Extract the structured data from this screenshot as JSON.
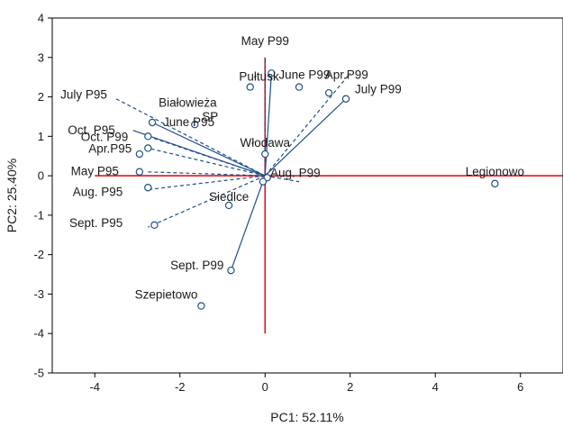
{
  "chart_data": {
    "type": "scatter",
    "subtype": "pca-biplot",
    "xlabel": "PC1: 52.11%",
    "ylabel": "PC2: 25.40%",
    "xlim": [
      -5,
      7
    ],
    "ylim": [
      -5,
      4
    ],
    "x_ticks": [
      -4,
      -2,
      0,
      2,
      4,
      6
    ],
    "y_ticks": [
      -5,
      -4,
      -3,
      -2,
      -1,
      0,
      1,
      2,
      3,
      4
    ],
    "colors": {
      "vectors": "#1f4e8c",
      "points": "#1f4e8c",
      "reference_lines": "#e0161b",
      "frame": "#000000"
    },
    "reference_lines": {
      "vertical_x": 0,
      "vertical_y_range": [
        -4,
        3
      ],
      "horizontal_y": 0,
      "horizontal_x_range": [
        -4,
        7
      ]
    },
    "vectors": [
      {
        "label": "May P99",
        "x": 0.0,
        "y": 3.0,
        "style": "dashed"
      },
      {
        "label": "June P99",
        "x": 0.15,
        "y": 2.6,
        "style": "solid"
      },
      {
        "label": "Apr.P99",
        "x": 2.0,
        "y": 2.6,
        "style": "dashed"
      },
      {
        "label": "July P99",
        "x": 1.9,
        "y": 1.95,
        "style": "solid"
      },
      {
        "label": "July P95",
        "x": -3.5,
        "y": 1.95,
        "style": "dashed"
      },
      {
        "label": "June P95",
        "x": -2.65,
        "y": 1.35,
        "style": "solid"
      },
      {
        "label": "Oct. P95",
        "x": -3.1,
        "y": 1.15,
        "style": "solid"
      },
      {
        "label": "Oct. P99",
        "x": -2.75,
        "y": 1.0,
        "style": "dashed"
      },
      {
        "label": "Apr.P95",
        "x": -2.75,
        "y": 0.7,
        "style": "dashed"
      },
      {
        "label": "May P95",
        "x": -2.8,
        "y": 0.1,
        "style": "dashed"
      },
      {
        "label": "Aug. P95",
        "x": -2.75,
        "y": -0.35,
        "style": "dashed"
      },
      {
        "label": "Sept. P95",
        "x": -2.75,
        "y": -1.3,
        "style": "dashed"
      },
      {
        "label": "Sept. P99",
        "x": -0.8,
        "y": -2.4,
        "style": "solid"
      },
      {
        "label": "Aug. P99",
        "x": 0.8,
        "y": -0.15,
        "style": "dashed"
      }
    ],
    "points": [
      {
        "label": "Pułtusk",
        "x": -0.35,
        "y": 2.25
      },
      {
        "label": "",
        "x": 0.8,
        "y": 2.25
      },
      {
        "label": "",
        "x": 1.5,
        "y": 2.1
      },
      {
        "label": "",
        "x": 1.9,
        "y": 1.95
      },
      {
        "label": "",
        "x": 0.15,
        "y": 2.6
      },
      {
        "label": "",
        "x": -2.65,
        "y": 1.35
      },
      {
        "label": "SP",
        "x": -1.65,
        "y": 1.3
      },
      {
        "label": "",
        "x": -2.75,
        "y": 1.0
      },
      {
        "label": "",
        "x": -2.75,
        "y": 0.7
      },
      {
        "label": "",
        "x": -2.95,
        "y": 0.55
      },
      {
        "label": "",
        "x": -2.95,
        "y": 0.1
      },
      {
        "label": "",
        "x": -2.75,
        "y": -0.3
      },
      {
        "label": "",
        "x": -2.6,
        "y": -1.25
      },
      {
        "label": "Włodawa",
        "x": 0.0,
        "y": 0.55
      },
      {
        "label": "",
        "x": 0.05,
        "y": -0.05
      },
      {
        "label": "",
        "x": -0.05,
        "y": -0.15
      },
      {
        "label": "Siedlce",
        "x": -0.85,
        "y": -0.75
      },
      {
        "label": "",
        "x": -0.8,
        "y": -2.4
      },
      {
        "label": "Szepietowo",
        "x": -1.5,
        "y": -3.3
      },
      {
        "label": "Legionowo",
        "x": 5.4,
        "y": -0.2
      }
    ],
    "extra_labels": [
      {
        "label": "Białowieża",
        "x": -2.5,
        "y": 1.75
      }
    ],
    "grid": false,
    "legend": "none"
  }
}
